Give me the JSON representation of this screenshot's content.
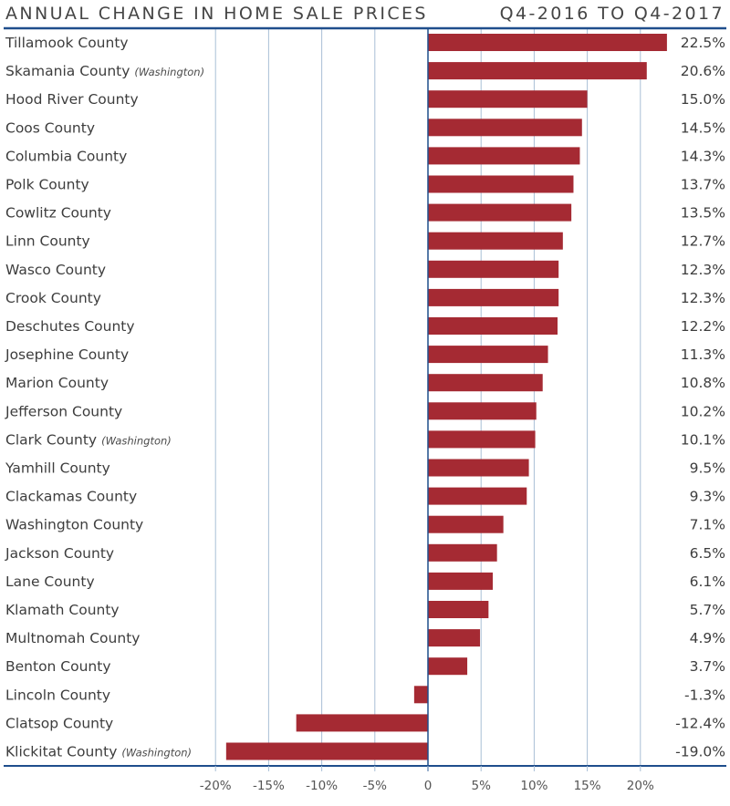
{
  "chart_data": {
    "type": "bar",
    "orientation": "horizontal",
    "title": "ANNUAL CHANGE IN HOME SALE PRICES",
    "subtitle": "Q4-2016 TO Q4-2017",
    "xlabel": "",
    "ylabel": "",
    "xlim": [
      -20,
      25
    ],
    "grid": true,
    "ticks": [
      {
        "value": -20,
        "label": "-20%"
      },
      {
        "value": -15,
        "label": "-15%"
      },
      {
        "value": -10,
        "label": "-10%"
      },
      {
        "value": -5,
        "label": "-5%"
      },
      {
        "value": 0,
        "label": "0"
      },
      {
        "value": 5,
        "label": "5%"
      },
      {
        "value": 10,
        "label": "10%"
      },
      {
        "value": 15,
        "label": "15%"
      },
      {
        "value": 20,
        "label": "20%"
      }
    ],
    "categories": [
      {
        "name": "Tillamook County",
        "note": "",
        "value": 22.5,
        "label": "22.5%"
      },
      {
        "name": "Skamania County",
        "note": "(Washington)",
        "value": 20.6,
        "label": "20.6%"
      },
      {
        "name": "Hood River County",
        "note": "",
        "value": 15.0,
        "label": "15.0%"
      },
      {
        "name": "Coos County",
        "note": "",
        "value": 14.5,
        "label": "14.5%"
      },
      {
        "name": "Columbia County",
        "note": "",
        "value": 14.3,
        "label": "14.3%"
      },
      {
        "name": "Polk County",
        "note": "",
        "value": 13.7,
        "label": "13.7%"
      },
      {
        "name": "Cowlitz County",
        "note": "",
        "value": 13.5,
        "label": "13.5%"
      },
      {
        "name": "Linn County",
        "note": "",
        "value": 12.7,
        "label": "12.7%"
      },
      {
        "name": "Wasco County",
        "note": "",
        "value": 12.3,
        "label": "12.3%"
      },
      {
        "name": "Crook County",
        "note": "",
        "value": 12.3,
        "label": "12.3%"
      },
      {
        "name": "Deschutes County",
        "note": "",
        "value": 12.2,
        "label": "12.2%"
      },
      {
        "name": "Josephine County",
        "note": "",
        "value": 11.3,
        "label": "11.3%"
      },
      {
        "name": "Marion County",
        "note": "",
        "value": 10.8,
        "label": "10.8%"
      },
      {
        "name": "Jefferson County",
        "note": "",
        "value": 10.2,
        "label": "10.2%"
      },
      {
        "name": "Clark County",
        "note": "(Washington)",
        "value": 10.1,
        "label": "10.1%"
      },
      {
        "name": "Yamhill County",
        "note": "",
        "value": 9.5,
        "label": "9.5%"
      },
      {
        "name": "Clackamas County",
        "note": "",
        "value": 9.3,
        "label": "9.3%"
      },
      {
        "name": "Washington County",
        "note": "",
        "value": 7.1,
        "label": "7.1%"
      },
      {
        "name": "Jackson County",
        "note": "",
        "value": 6.5,
        "label": "6.5%"
      },
      {
        "name": "Lane County",
        "note": "",
        "value": 6.1,
        "label": "6.1%"
      },
      {
        "name": "Klamath County",
        "note": "",
        "value": 5.7,
        "label": "5.7%"
      },
      {
        "name": "Multnomah County",
        "note": "",
        "value": 4.9,
        "label": "4.9%"
      },
      {
        "name": "Benton County",
        "note": "",
        "value": 3.7,
        "label": "3.7%"
      },
      {
        "name": "Lincoln County",
        "note": "",
        "value": -1.3,
        "label": "-1.3%"
      },
      {
        "name": "Clatsop County",
        "note": "",
        "value": -12.4,
        "label": "-12.4%"
      },
      {
        "name": "Klickitat County",
        "note": "(Washington)",
        "value": -19.0,
        "label": "-19.0%"
      }
    ],
    "colors": {
      "bar": "#a52a33",
      "axis": "#1f4e8c",
      "grid": "#a9bfd6"
    }
  }
}
